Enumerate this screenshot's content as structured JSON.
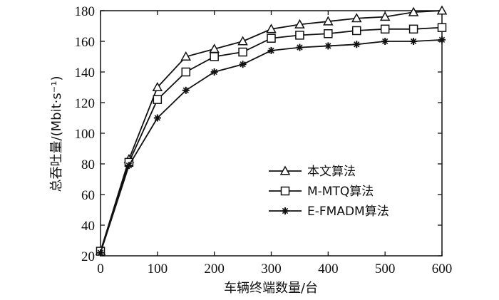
{
  "chart_data": {
    "type": "line",
    "xlabel": "车辆终端数量/台",
    "ylabel": "总吞吐量/(Mbit·s⁻¹)",
    "xlim": [
      0,
      600
    ],
    "ylim": [
      20,
      180
    ],
    "xticks": [
      0,
      100,
      200,
      300,
      400,
      500,
      600
    ],
    "yticks": [
      20,
      40,
      60,
      80,
      100,
      120,
      140,
      160,
      180
    ],
    "grid": false,
    "legend_position": "right-center",
    "x": [
      0,
      50,
      100,
      150,
      200,
      250,
      300,
      350,
      400,
      450,
      500,
      550,
      600
    ],
    "series": [
      {
        "name": "本文算法",
        "marker": "triangle",
        "values": [
          23,
          83,
          130,
          150,
          155,
          160,
          168,
          171,
          173,
          175,
          176,
          179,
          180
        ]
      },
      {
        "name": "M-MTQ算法",
        "marker": "square",
        "values": [
          23,
          81,
          122,
          140,
          150,
          153,
          162,
          164,
          165,
          167,
          168,
          168,
          169
        ]
      },
      {
        "name": "E-FMADM算法",
        "marker": "star",
        "values": [
          22,
          79,
          110,
          128,
          140,
          145,
          154,
          156,
          157,
          158,
          160,
          160,
          161
        ]
      }
    ]
  }
}
